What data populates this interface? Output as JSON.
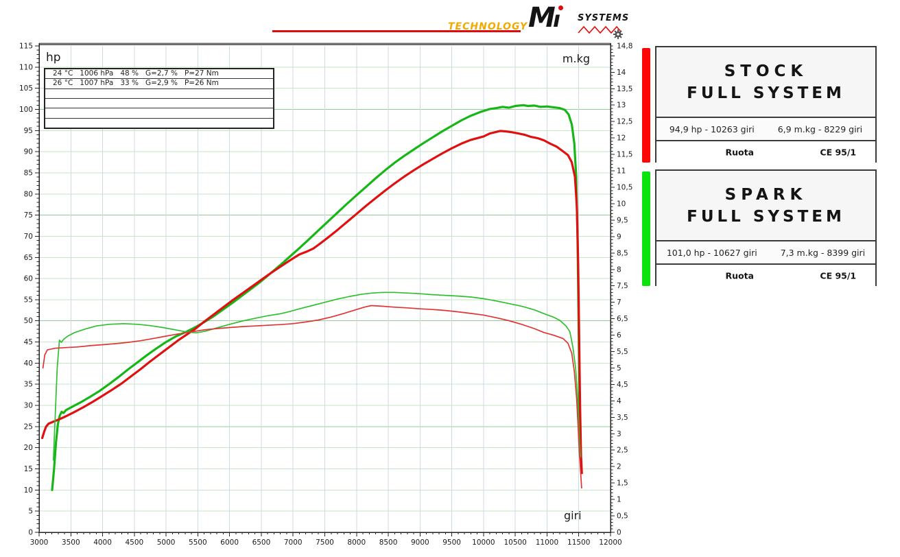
{
  "logo": {
    "technology": "TECHNOLOGY",
    "mi_m": "M",
    "mi_i": "ı",
    "systems": "SYSTEMS"
  },
  "axis_labels": {
    "left": "hp",
    "right": "m.kg",
    "x": "giri"
  },
  "info_box": {
    "rows": [
      "24 °C   1006 hPa   48 %   G=2,7 %   P=27 Nm",
      "26 °C   1007 hPa   33 %   G=2,9 %   P=26 Nm",
      "",
      "",
      "",
      ""
    ]
  },
  "legend": {
    "stock": {
      "title_line1": "STOCK",
      "title_line2": "FULL SYSTEM",
      "hp_peak": "94,9 hp - 10263 giri",
      "torque_peak": "6,9 m.kg - 8229 giri",
      "footer_left": "Ruota",
      "footer_right": "CE 95/1",
      "color": "#fc0606"
    },
    "spark": {
      "title_line1": "SPARK",
      "title_line2": "FULL SYSTEM",
      "hp_peak": "101,0 hp - 10627 giri",
      "torque_peak": "7,3 m.kg - 8399 giri",
      "footer_left": "Ruota",
      "footer_right": "CE 95/1",
      "color": "#0ce20c"
    }
  },
  "chart_data": {
    "type": "line",
    "title": "Dyno run comparison: hp and m.kg vs engine rpm (giri)",
    "grid": {
      "horizontal": true,
      "vertical": true
    },
    "x_axis": {
      "label": "giri",
      "min": 3000,
      "max": 12000,
      "major_step": 500,
      "minor_step": 100,
      "tick_labels": [
        "3000",
        "3500",
        "4000",
        "4500",
        "5000",
        "5500",
        "6000",
        "6500",
        "7000",
        "7500",
        "8000",
        "8500",
        "9000",
        "9500",
        "10000",
        "10500",
        "11000",
        "11500",
        "12000"
      ]
    },
    "y_left": {
      "label": "hp",
      "min": 0,
      "max": 115,
      "major_step": 5,
      "minor_step": 1,
      "tick_labels": [
        "0",
        "5",
        "10",
        "15",
        "20",
        "25",
        "30",
        "35",
        "40",
        "45",
        "50",
        "55",
        "60",
        "65",
        "70",
        "75",
        "80",
        "85",
        "90",
        "95",
        "100",
        "105",
        "110",
        "115"
      ]
    },
    "y_right": {
      "label": "m.kg",
      "min": 0,
      "max": 14.8,
      "major_step": 0.5,
      "minor_step": 0.1,
      "tick_labels": [
        "0",
        "0,5",
        "1",
        "1,5",
        "2",
        "2,5",
        "3",
        "3,5",
        "4",
        "4,5",
        "5",
        "5,5",
        "6",
        "6,5",
        "7",
        "7,5",
        "8",
        "8,5",
        "9",
        "9,5",
        "10",
        "10,5",
        "11",
        "11,5",
        "12",
        "12,5",
        "13",
        "13,5",
        "14",
        "14,8"
      ]
    },
    "series": [
      {
        "name": "spark-hp",
        "legend": "SPARK FULL SYSTEM power",
        "axis": "hp",
        "color": "#15b615",
        "width": 3.2,
        "points": [
          [
            3205,
            10
          ],
          [
            3235,
            15
          ],
          [
            3265,
            21
          ],
          [
            3295,
            25.5
          ],
          [
            3325,
            27.6
          ],
          [
            3355,
            28.5
          ],
          [
            3385,
            28.2
          ],
          [
            3425,
            28.9
          ],
          [
            3500,
            29.5
          ],
          [
            3650,
            30.7
          ],
          [
            3800,
            32
          ],
          [
            3950,
            33.4
          ],
          [
            4100,
            35
          ],
          [
            4250,
            36.7
          ],
          [
            4400,
            38.5
          ],
          [
            4550,
            40.2
          ],
          [
            4700,
            41.9
          ],
          [
            4850,
            43.5
          ],
          [
            5000,
            45
          ],
          [
            5150,
            46.3
          ],
          [
            5300,
            47.3
          ],
          [
            5450,
            48.4
          ],
          [
            5600,
            49.7
          ],
          [
            5750,
            51.1
          ],
          [
            5900,
            52.7
          ],
          [
            6050,
            54.3
          ],
          [
            6200,
            56
          ],
          [
            6350,
            57.7
          ],
          [
            6500,
            59.4
          ],
          [
            6650,
            61.3
          ],
          [
            6800,
            63.2
          ],
          [
            6950,
            65.2
          ],
          [
            7100,
            67.2
          ],
          [
            7250,
            69.3
          ],
          [
            7400,
            71.4
          ],
          [
            7550,
            73.5
          ],
          [
            7700,
            75.6
          ],
          [
            7850,
            77.7
          ],
          [
            8000,
            79.7
          ],
          [
            8150,
            81.7
          ],
          [
            8300,
            83.7
          ],
          [
            8450,
            85.6
          ],
          [
            8600,
            87.4
          ],
          [
            8750,
            89
          ],
          [
            8900,
            90.5
          ],
          [
            9050,
            92
          ],
          [
            9200,
            93.4
          ],
          [
            9350,
            94.8
          ],
          [
            9500,
            96.1
          ],
          [
            9650,
            97.4
          ],
          [
            9800,
            98.5
          ],
          [
            9950,
            99.4
          ],
          [
            10100,
            100.1
          ],
          [
            10200,
            100.3
          ],
          [
            10300,
            100.6
          ],
          [
            10400,
            100.4
          ],
          [
            10500,
            100.8
          ],
          [
            10627,
            101
          ],
          [
            10700,
            100.8
          ],
          [
            10800,
            100.9
          ],
          [
            10900,
            100.6
          ],
          [
            11000,
            100.7
          ],
          [
            11100,
            100.5
          ],
          [
            11200,
            100.3
          ],
          [
            11280,
            99.9
          ],
          [
            11340,
            98.8
          ],
          [
            11390,
            96.5
          ],
          [
            11430,
            92
          ],
          [
            11460,
            84
          ],
          [
            11480,
            70
          ],
          [
            11495,
            52
          ],
          [
            11508,
            34
          ],
          [
            11520,
            22
          ],
          [
            11532,
            18
          ]
        ]
      },
      {
        "name": "stock-hp",
        "legend": "STOCK FULL SYSTEM power",
        "axis": "hp",
        "color": "#e01010",
        "width": 3.2,
        "points": [
          [
            3050,
            22.3
          ],
          [
            3080,
            23.8
          ],
          [
            3110,
            25
          ],
          [
            3150,
            25.7
          ],
          [
            3230,
            26.2
          ],
          [
            3330,
            26.8
          ],
          [
            3430,
            27.5
          ],
          [
            3550,
            28.4
          ],
          [
            3700,
            29.6
          ],
          [
            3850,
            30.9
          ],
          [
            4000,
            32.3
          ],
          [
            4150,
            33.7
          ],
          [
            4300,
            35.2
          ],
          [
            4450,
            36.9
          ],
          [
            4600,
            38.6
          ],
          [
            4750,
            40.4
          ],
          [
            4900,
            42.1
          ],
          [
            5050,
            43.8
          ],
          [
            5200,
            45.5
          ],
          [
            5350,
            47
          ],
          [
            5450,
            48
          ],
          [
            5600,
            49.8
          ],
          [
            5750,
            51.5
          ],
          [
            5900,
            53.2
          ],
          [
            6050,
            54.9
          ],
          [
            6200,
            56.5
          ],
          [
            6350,
            58.1
          ],
          [
            6500,
            59.7
          ],
          [
            6650,
            61.3
          ],
          [
            6800,
            62.8
          ],
          [
            6950,
            64.3
          ],
          [
            7100,
            65.7
          ],
          [
            7220,
            66.4
          ],
          [
            7320,
            67.1
          ],
          [
            7420,
            68.2
          ],
          [
            7550,
            69.7
          ],
          [
            7700,
            71.5
          ],
          [
            7850,
            73.4
          ],
          [
            8000,
            75.3
          ],
          [
            8150,
            77.2
          ],
          [
            8300,
            79
          ],
          [
            8450,
            80.8
          ],
          [
            8600,
            82.5
          ],
          [
            8750,
            84.1
          ],
          [
            8900,
            85.6
          ],
          [
            9050,
            87
          ],
          [
            9200,
            88.3
          ],
          [
            9350,
            89.6
          ],
          [
            9500,
            90.8
          ],
          [
            9650,
            91.9
          ],
          [
            9800,
            92.8
          ],
          [
            9900,
            93.2
          ],
          [
            10000,
            93.6
          ],
          [
            10100,
            94.3
          ],
          [
            10263,
            94.9
          ],
          [
            10350,
            94.8
          ],
          [
            10450,
            94.6
          ],
          [
            10550,
            94.3
          ],
          [
            10650,
            94
          ],
          [
            10750,
            93.5
          ],
          [
            10850,
            93.2
          ],
          [
            10950,
            92.7
          ],
          [
            11050,
            91.9
          ],
          [
            11150,
            91.2
          ],
          [
            11250,
            90.1
          ],
          [
            11330,
            89.2
          ],
          [
            11390,
            87.5
          ],
          [
            11440,
            84
          ],
          [
            11470,
            77
          ],
          [
            11490,
            64
          ],
          [
            11505,
            47
          ],
          [
            11520,
            30
          ],
          [
            11535,
            18
          ],
          [
            11548,
            14
          ]
        ]
      },
      {
        "name": "spark-torque",
        "legend": "SPARK FULL SYSTEM torque",
        "axis": "mkg",
        "color": "#2fbf2f",
        "width": 1.7,
        "points": [
          [
            3225,
            2.2
          ],
          [
            3255,
            3.6
          ],
          [
            3285,
            5
          ],
          [
            3320,
            5.85
          ],
          [
            3350,
            5.78
          ],
          [
            3390,
            5.88
          ],
          [
            3450,
            5.97
          ],
          [
            3550,
            6.07
          ],
          [
            3700,
            6.17
          ],
          [
            3900,
            6.28
          ],
          [
            4100,
            6.33
          ],
          [
            4330,
            6.35
          ],
          [
            4550,
            6.33
          ],
          [
            4750,
            6.29
          ],
          [
            4950,
            6.23
          ],
          [
            5150,
            6.16
          ],
          [
            5350,
            6.09
          ],
          [
            5480,
            6.07
          ],
          [
            5620,
            6.12
          ],
          [
            5800,
            6.22
          ],
          [
            6000,
            6.33
          ],
          [
            6200,
            6.43
          ],
          [
            6400,
            6.51
          ],
          [
            6600,
            6.59
          ],
          [
            6800,
            6.65
          ],
          [
            6950,
            6.72
          ],
          [
            7100,
            6.8
          ],
          [
            7300,
            6.9
          ],
          [
            7500,
            7
          ],
          [
            7700,
            7.1
          ],
          [
            7900,
            7.18
          ],
          [
            8100,
            7.25
          ],
          [
            8250,
            7.28
          ],
          [
            8399,
            7.3
          ],
          [
            8600,
            7.3
          ],
          [
            8800,
            7.28
          ],
          [
            9000,
            7.26
          ],
          [
            9200,
            7.23
          ],
          [
            9400,
            7.21
          ],
          [
            9600,
            7.19
          ],
          [
            9800,
            7.16
          ],
          [
            10000,
            7.11
          ],
          [
            10200,
            7.04
          ],
          [
            10400,
            6.96
          ],
          [
            10600,
            6.88
          ],
          [
            10800,
            6.77
          ],
          [
            11000,
            6.62
          ],
          [
            11100,
            6.55
          ],
          [
            11200,
            6.45
          ],
          [
            11300,
            6.28
          ],
          [
            11360,
            6.1
          ],
          [
            11410,
            5.6
          ],
          [
            11450,
            5
          ],
          [
            11480,
            4.2
          ],
          [
            11500,
            3.4
          ],
          [
            11515,
            2.7
          ],
          [
            11528,
            2.3
          ]
        ]
      },
      {
        "name": "stock-torque",
        "legend": "STOCK FULL SYSTEM torque",
        "axis": "mkg",
        "color": "#e23333",
        "width": 1.7,
        "points": [
          [
            3060,
            5
          ],
          [
            3090,
            5.4
          ],
          [
            3130,
            5.55
          ],
          [
            3250,
            5.6
          ],
          [
            3400,
            5.62
          ],
          [
            3600,
            5.64
          ],
          [
            3800,
            5.68
          ],
          [
            4000,
            5.71
          ],
          [
            4200,
            5.74
          ],
          [
            4400,
            5.78
          ],
          [
            4600,
            5.83
          ],
          [
            4800,
            5.9
          ],
          [
            5000,
            5.97
          ],
          [
            5200,
            6.04
          ],
          [
            5400,
            6.1
          ],
          [
            5600,
            6.16
          ],
          [
            5800,
            6.2
          ],
          [
            6000,
            6.23
          ],
          [
            6200,
            6.26
          ],
          [
            6400,
            6.28
          ],
          [
            6600,
            6.3
          ],
          [
            6800,
            6.32
          ],
          [
            7000,
            6.35
          ],
          [
            7200,
            6.4
          ],
          [
            7400,
            6.46
          ],
          [
            7600,
            6.55
          ],
          [
            7800,
            6.66
          ],
          [
            8000,
            6.78
          ],
          [
            8120,
            6.85
          ],
          [
            8229,
            6.9
          ],
          [
            8400,
            6.88
          ],
          [
            8600,
            6.85
          ],
          [
            8800,
            6.83
          ],
          [
            9000,
            6.8
          ],
          [
            9200,
            6.78
          ],
          [
            9400,
            6.75
          ],
          [
            9600,
            6.71
          ],
          [
            9800,
            6.66
          ],
          [
            10000,
            6.61
          ],
          [
            10200,
            6.53
          ],
          [
            10400,
            6.44
          ],
          [
            10600,
            6.33
          ],
          [
            10800,
            6.2
          ],
          [
            10950,
            6.08
          ],
          [
            11100,
            6
          ],
          [
            11250,
            5.9
          ],
          [
            11330,
            5.75
          ],
          [
            11390,
            5.45
          ],
          [
            11430,
            4.9
          ],
          [
            11465,
            4.1
          ],
          [
            11490,
            3.2
          ],
          [
            11510,
            2.4
          ],
          [
            11530,
            1.8
          ],
          [
            11545,
            1.35
          ]
        ]
      }
    ]
  }
}
